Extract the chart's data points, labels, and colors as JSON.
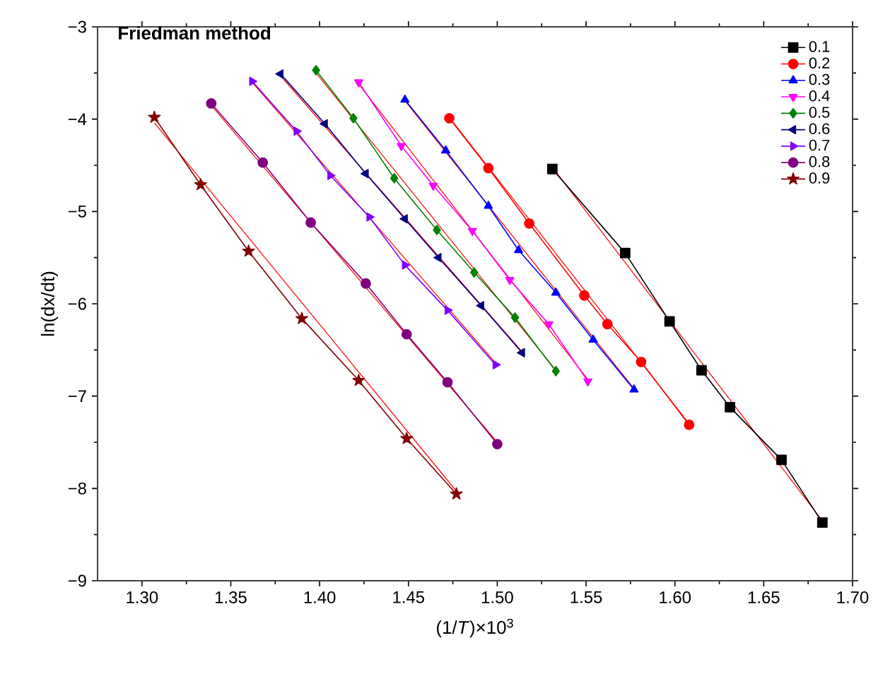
{
  "chart_data": {
    "type": "line",
    "title": "Friedman method",
    "xlabel": "(1/*T*)×10$^{3}$",
    "ylabel": "ln(dx/dt)",
    "xlim": [
      1.275,
      1.7
    ],
    "ylim": [
      -9,
      -3
    ],
    "xticks": [
      {
        "value": 1.3,
        "label": "1.30"
      },
      {
        "value": 1.35,
        "label": "1.35"
      },
      {
        "value": 1.4,
        "label": "1.40"
      },
      {
        "value": 1.45,
        "label": "1.45"
      },
      {
        "value": 1.5,
        "label": "1.50"
      },
      {
        "value": 1.55,
        "label": "1.55"
      },
      {
        "value": 1.6,
        "label": "1.60"
      },
      {
        "value": 1.65,
        "label": "1.65"
      },
      {
        "value": 1.7,
        "label": "1.70"
      }
    ],
    "yticks": [
      {
        "value": -9,
        "label": "−9"
      },
      {
        "value": -8,
        "label": "−8"
      },
      {
        "value": -7,
        "label": "−7"
      },
      {
        "value": -6,
        "label": "−6"
      },
      {
        "value": -5,
        "label": "−5"
      },
      {
        "value": -4,
        "label": "−4"
      },
      {
        "value": -3,
        "label": "−3"
      }
    ],
    "legend": "top right",
    "grid": false,
    "line_style": "solid",
    "series": [
      {
        "name": "0.1",
        "color": "#000000",
        "marker": "square",
        "x": [
          1.531,
          1.572,
          1.597,
          1.615,
          1.631,
          1.66,
          1.683
        ],
        "values": [
          -4.54,
          -5.45,
          -6.19,
          -6.72,
          -7.12,
          -7.69,
          -8.37
        ]
      },
      {
        "name": "0.2",
        "color": "#ff0000",
        "marker": "circle",
        "x": [
          1.473,
          1.495,
          1.518,
          1.549,
          1.562,
          1.581,
          1.608
        ],
        "values": [
          -3.99,
          -4.53,
          -5.13,
          -5.91,
          -6.22,
          -6.63,
          -7.31
        ]
      },
      {
        "name": "0.3",
        "color": "#0000ff",
        "marker": "triangle",
        "x": [
          1.448,
          1.471,
          1.495,
          1.512,
          1.533,
          1.554,
          1.577
        ],
        "values": [
          -3.79,
          -4.34,
          -4.94,
          -5.42,
          -5.88,
          -6.39,
          -6.93
        ]
      },
      {
        "name": "0.4",
        "color": "#ff00ff",
        "marker": "triangle-down",
        "x": [
          1.422,
          1.446,
          1.464,
          1.486,
          1.507,
          1.529,
          1.551
        ],
        "values": [
          -3.6,
          -4.29,
          -4.72,
          -5.21,
          -5.74,
          -6.22,
          -6.84
        ]
      },
      {
        "name": "0.5",
        "color": "#008000",
        "marker": "diamond",
        "x": [
          1.398,
          1.419,
          1.442,
          1.466,
          1.487,
          1.51,
          1.533
        ],
        "values": [
          -3.47,
          -3.99,
          -4.64,
          -5.2,
          -5.66,
          -6.15,
          -6.73
        ]
      },
      {
        "name": "0.6",
        "color": "#000080",
        "marker": "triangle-left",
        "x": [
          1.378,
          1.403,
          1.426,
          1.448,
          1.467,
          1.491,
          1.514
        ],
        "values": [
          -3.51,
          -4.05,
          -4.59,
          -5.08,
          -5.5,
          -6.02,
          -6.53
        ]
      },
      {
        "name": "0.7",
        "color": "#8000ff",
        "marker": "triangle-right",
        "x": [
          1.362,
          1.387,
          1.406,
          1.428,
          1.448,
          1.472,
          1.499
        ],
        "values": [
          -3.59,
          -4.13,
          -4.61,
          -5.06,
          -5.58,
          -6.07,
          -6.66
        ]
      },
      {
        "name": "0.8",
        "color": "#800080",
        "marker": "circle",
        "x": [
          1.339,
          1.368,
          1.395,
          1.426,
          1.449,
          1.472,
          1.5
        ],
        "values": [
          -3.83,
          -4.47,
          -5.12,
          -5.78,
          -6.33,
          -6.85,
          -7.52
        ]
      },
      {
        "name": "0.9",
        "color": "#800000",
        "marker": "star",
        "x": [
          1.307,
          1.333,
          1.36,
          1.39,
          1.422,
          1.449,
          1.477
        ],
        "values": [
          -3.98,
          -4.71,
          -5.43,
          -6.16,
          -6.83,
          -7.46,
          -8.06
        ]
      },
      {
        "color": "#ff0000",
        "marker": "none",
        "x": [
          1.531,
          1.683
        ],
        "values": [
          -4.52,
          -8.35
        ]
      },
      {
        "color": "#ff0000",
        "marker": "none",
        "x": [
          1.473,
          1.608
        ],
        "values": [
          -3.98,
          -7.3
        ]
      },
      {
        "color": "#ff0000",
        "marker": "none",
        "x": [
          1.448,
          1.577
        ],
        "values": [
          -3.8,
          -6.92
        ]
      },
      {
        "color": "#ff0000",
        "marker": "none",
        "x": [
          1.422,
          1.551
        ],
        "values": [
          -3.62,
          -6.82
        ]
      },
      {
        "color": "#ff0000",
        "marker": "none",
        "x": [
          1.398,
          1.533
        ],
        "values": [
          -3.5,
          -6.72
        ]
      },
      {
        "color": "#ff0000",
        "marker": "none",
        "x": [
          1.378,
          1.514
        ],
        "values": [
          -3.53,
          -6.52
        ]
      },
      {
        "color": "#ff0000",
        "marker": "none",
        "x": [
          1.362,
          1.499
        ],
        "values": [
          -3.6,
          -6.64
        ]
      },
      {
        "color": "#ff0000",
        "marker": "none",
        "x": [
          1.339,
          1.5
        ],
        "values": [
          -3.85,
          -7.5
        ]
      },
      {
        "color": "#ff0000",
        "marker": "none",
        "x": [
          1.307,
          1.477
        ],
        "values": [
          -4.04,
          -8.03
        ]
      }
    ]
  }
}
